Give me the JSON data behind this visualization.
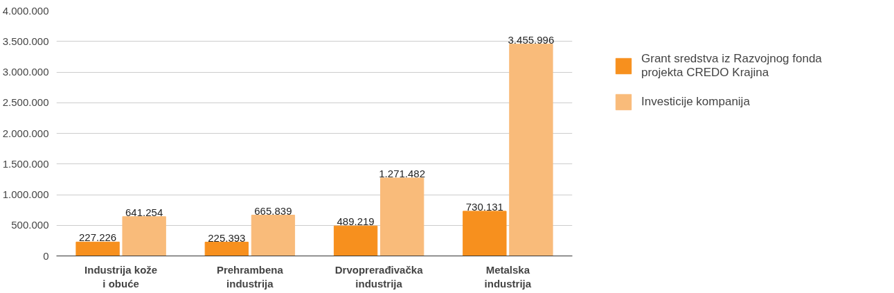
{
  "chart_data": {
    "type": "bar",
    "categories": [
      "Industrija kože\ni obuće",
      "Prehrambena\nindustrija",
      "Drvoprerađivačka\nindustrija",
      "Metalska\nindustrija"
    ],
    "series": [
      {
        "name": "Grant sredstva iz Razvojnog fonda projekta CREDO Krajina",
        "color": "#f7901e",
        "values": [
          227226,
          225393,
          489219,
          730131
        ],
        "value_labels": [
          "227.226",
          "225.393",
          "489.219",
          "730.131"
        ]
      },
      {
        "name": "Investicije kompanija",
        "color": "#f9bb7a",
        "values": [
          641254,
          665839,
          1271482,
          3455996
        ],
        "value_labels": [
          "641.254",
          "665.839",
          "1.271.482",
          "3.455.996"
        ]
      }
    ],
    "ylim": [
      0,
      4000000
    ],
    "yticks": [
      {
        "value": 0,
        "label": "0"
      },
      {
        "value": 500000,
        "label": "500.000"
      },
      {
        "value": 1000000,
        "label": "1.000.000"
      },
      {
        "value": 1500000,
        "label": "1.500.000"
      },
      {
        "value": 2000000,
        "label": "2.000.000"
      },
      {
        "value": 2500000,
        "label": "2.500.000"
      },
      {
        "value": 3000000,
        "label": "3.000.000"
      },
      {
        "value": 3500000,
        "label": "3.500.000"
      },
      {
        "value": 4000000,
        "label": "4.000.000"
      }
    ],
    "grid": "y",
    "legend": "top right"
  }
}
